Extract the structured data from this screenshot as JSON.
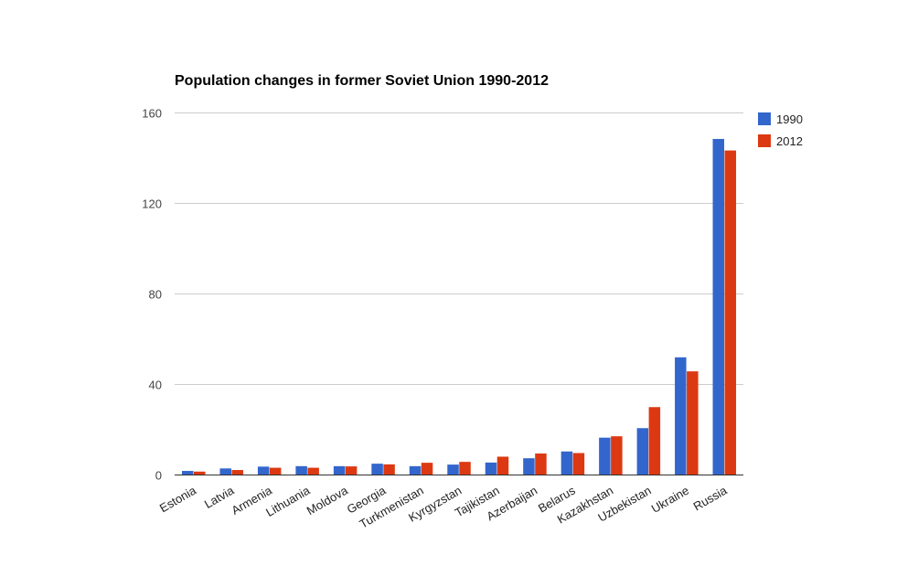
{
  "chart_data": {
    "type": "bar",
    "title": "Population changes in former Soviet Union 1990-2012",
    "xlabel": "",
    "ylabel": "",
    "categories": [
      "Estonia",
      "Latvia",
      "Armenia",
      "Lithuania",
      "Moldova",
      "Georgia",
      "Turkmenistan",
      "Kyrgyzstan",
      "Tajikistan",
      "Azerbaijan",
      "Belarus",
      "Kazakhstan",
      "Uzbekistan",
      "Ukraine",
      "Russia"
    ],
    "series": [
      {
        "name": "1990",
        "color": "#3366cc",
        "values": [
          1.6,
          2.7,
          3.5,
          3.7,
          3.7,
          4.8,
          3.7,
          4.4,
          5.3,
          7.2,
          10.2,
          16.3,
          20.5,
          51.8,
          148.3
        ]
      },
      {
        "name": "2012",
        "color": "#dc3912",
        "values": [
          1.3,
          2.0,
          3.0,
          3.0,
          3.6,
          4.5,
          5.2,
          5.6,
          7.9,
          9.3,
          9.5,
          16.9,
          29.8,
          45.6,
          143.2
        ]
      }
    ],
    "ylim": [
      0,
      160
    ],
    "yticks": [
      0,
      40,
      80,
      120,
      160
    ],
    "grid": true,
    "legend_position": "right"
  }
}
